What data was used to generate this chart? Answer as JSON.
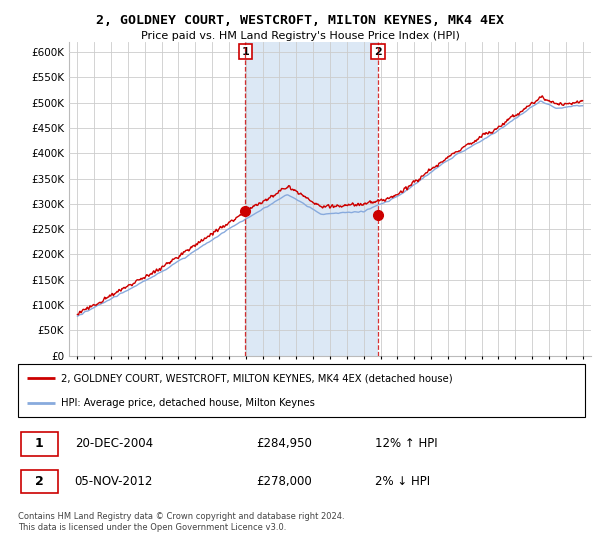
{
  "title": "2, GOLDNEY COURT, WESTCROFT, MILTON KEYNES, MK4 4EX",
  "subtitle": "Price paid vs. HM Land Registry's House Price Index (HPI)",
  "ylim": [
    0,
    620000
  ],
  "yticks": [
    0,
    50000,
    100000,
    150000,
    200000,
    250000,
    300000,
    350000,
    400000,
    450000,
    500000,
    550000,
    600000
  ],
  "sale1_date": "20-DEC-2004",
  "sale1_price": 284950,
  "sale1_x": 2004.97,
  "sale2_date": "05-NOV-2012",
  "sale2_price": 278000,
  "sale2_x": 2012.85,
  "legend_line1": "2, GOLDNEY COURT, WESTCROFT, MILTON KEYNES, MK4 4EX (detached house)",
  "legend_line2": "HPI: Average price, detached house, Milton Keynes",
  "footnote": "Contains HM Land Registry data © Crown copyright and database right 2024.\nThis data is licensed under the Open Government Licence v3.0.",
  "line_color_red": "#cc0000",
  "line_color_blue": "#88aadd",
  "shade_color": "#dce8f5",
  "background_color": "#ffffff",
  "grid_color": "#cccccc",
  "xlim_left": 1994.5,
  "xlim_right": 2025.5
}
